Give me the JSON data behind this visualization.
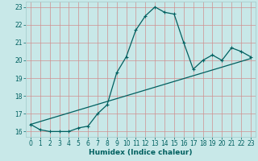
{
  "xlabel": "Humidex (Indice chaleur)",
  "background_color": "#c8e8e8",
  "grid_color": "#a8cece",
  "line_color": "#006060",
  "xlim": [
    -0.5,
    23.5
  ],
  "ylim": [
    15.7,
    23.3
  ],
  "yticks": [
    16,
    17,
    18,
    19,
    20,
    21,
    22,
    23
  ],
  "xticks": [
    0,
    1,
    2,
    3,
    4,
    5,
    6,
    7,
    8,
    9,
    10,
    11,
    12,
    13,
    14,
    15,
    16,
    17,
    18,
    19,
    20,
    21,
    22,
    23
  ],
  "curve_x": [
    0,
    1,
    2,
    3,
    4,
    5,
    6,
    7,
    8,
    9,
    10,
    11,
    12,
    13,
    14,
    15,
    16,
    17,
    18,
    19,
    20,
    21,
    22,
    23
  ],
  "curve_y": [
    16.4,
    16.1,
    16.0,
    16.0,
    16.0,
    16.2,
    16.3,
    17.0,
    17.5,
    19.3,
    20.2,
    21.7,
    22.5,
    23.0,
    22.7,
    22.6,
    21.0,
    19.5,
    20.0,
    20.3,
    20.0,
    20.7,
    20.5,
    20.2
  ],
  "trend_x": [
    0,
    23
  ],
  "trend_y": [
    16.4,
    20.1
  ],
  "marker": "+",
  "marker_size": 3,
  "line_width": 0.9,
  "xlabel_fontsize": 6.5,
  "tick_fontsize": 5.5
}
